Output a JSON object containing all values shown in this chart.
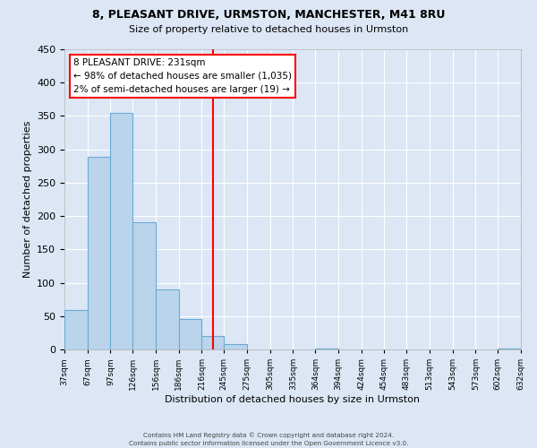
{
  "title": "8, PLEASANT DRIVE, URMSTON, MANCHESTER, M41 8RU",
  "subtitle": "Size of property relative to detached houses in Urmston",
  "xlabel": "Distribution of detached houses by size in Urmston",
  "ylabel": "Number of detached properties",
  "bin_edges": [
    37,
    67,
    97,
    126,
    156,
    186,
    216,
    245,
    275,
    305,
    335,
    364,
    394,
    424,
    454,
    483,
    513,
    543,
    573,
    602,
    632
  ],
  "bin_labels": [
    "37sqm",
    "67sqm",
    "97sqm",
    "126sqm",
    "156sqm",
    "186sqm",
    "216sqm",
    "245sqm",
    "275sqm",
    "305sqm",
    "335sqm",
    "364sqm",
    "394sqm",
    "424sqm",
    "454sqm",
    "483sqm",
    "513sqm",
    "543sqm",
    "573sqm",
    "602sqm",
    "632sqm"
  ],
  "bar_heights": [
    59,
    289,
    355,
    191,
    90,
    46,
    20,
    8,
    0,
    0,
    0,
    2,
    0,
    0,
    0,
    0,
    0,
    0,
    0,
    2
  ],
  "bar_color": "#bad4ec",
  "bar_edge_color": "#6aaad4",
  "property_line_x": 231,
  "property_line_color": "red",
  "ylim": [
    0,
    450
  ],
  "yticks": [
    0,
    50,
    100,
    150,
    200,
    250,
    300,
    350,
    400,
    450
  ],
  "annotation_title": "8 PLEASANT DRIVE: 231sqm",
  "annotation_line1": "← 98% of detached houses are smaller (1,035)",
  "annotation_line2": "2% of semi-detached houses are larger (19) →",
  "annotation_box_color": "#ffffff",
  "annotation_box_edge": "red",
  "footer1": "Contains HM Land Registry data © Crown copyright and database right 2024.",
  "footer2": "Contains public sector information licensed under the Open Government Licence v3.0.",
  "background_color": "#dce6f5",
  "plot_background": "#dce6f5"
}
